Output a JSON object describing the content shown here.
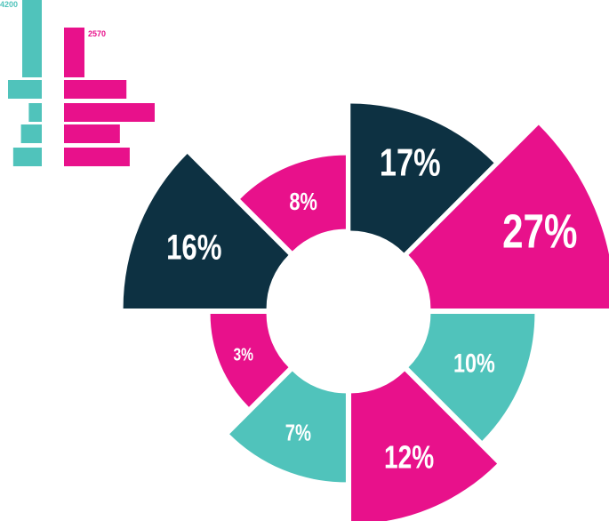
{
  "colors": {
    "navy": "#0d3142",
    "magenta": "#e8118b",
    "teal": "#50c3bb",
    "white": "#ffffff"
  },
  "chart_data": [
    {
      "type": "pie",
      "title": "",
      "variant": "exploded rose / donut with hole",
      "slices": [
        {
          "label": "17%",
          "value": 17,
          "color": "navy"
        },
        {
          "label": "27%",
          "value": 27,
          "color": "magenta"
        },
        {
          "label": "10%",
          "value": 10,
          "color": "teal"
        },
        {
          "label": "12%",
          "value": 12,
          "color": "magenta"
        },
        {
          "label": "7%",
          "value": 7,
          "color": "teal"
        },
        {
          "label": "3%",
          "value": 3,
          "color": "magenta"
        },
        {
          "label": "16%",
          "value": 16,
          "color": "navy"
        },
        {
          "label": "8%",
          "value": 8,
          "color": "magenta"
        }
      ]
    },
    {
      "type": "bar",
      "orientation": "horizontal",
      "annotations": [
        "4200",
        "2570"
      ],
      "series": [
        {
          "color": "teal",
          "values": [
            4200,
            650,
            250,
            400,
            550
          ]
        },
        {
          "color": "magenta",
          "values": [
            2570,
            950,
            1380,
            850,
            1000
          ]
        }
      ]
    }
  ]
}
